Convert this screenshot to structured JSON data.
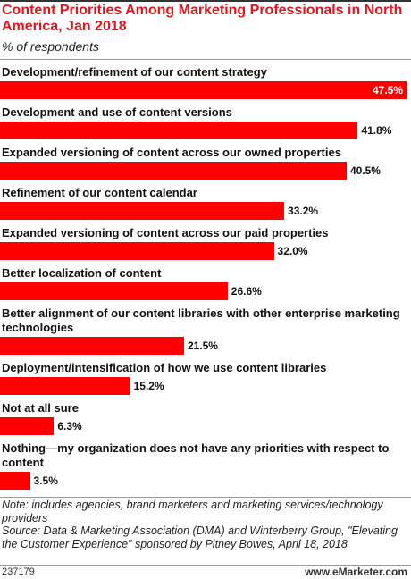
{
  "chart_data": {
    "type": "bar",
    "orientation": "horizontal",
    "title": "Content Priorities Among Marketing Professionals in North America, Jan 2018",
    "subtitle": "% of respondents",
    "categories": [
      "Development/refinement of our content strategy",
      "Development and use of content versions",
      "Expanded versioning of content across our owned properties",
      "Refinement of our content calendar",
      "Expanded versioning of content across our paid properties",
      "Better localization of content",
      "Better alignment of our content libraries with other enterprise marketing technologies",
      "Deployment/intensification of how we use content libraries",
      "Not at all sure",
      "Nothing—my organization does not have any priorities with respect to content"
    ],
    "values": [
      47.5,
      41.8,
      40.5,
      33.2,
      32.0,
      26.6,
      21.5,
      15.2,
      6.3,
      3.5
    ],
    "value_labels": [
      "47.5%",
      "41.8%",
      "40.5%",
      "33.2%",
      "32.0%",
      "26.6%",
      "21.5%",
      "15.2%",
      "6.3%",
      "3.5%"
    ],
    "color": "#ff0000",
    "note": "Note: includes agencies, brand marketers and marketing services/technology providers",
    "source": "Source: Data & Marketing Association (DMA) and Winterberry Group, \"Elevating the Customer Experience\" sponsored by Pitney Bowes, April 18, 2018",
    "chart_id": "237179",
    "brand": "www.eMarketer.com"
  }
}
